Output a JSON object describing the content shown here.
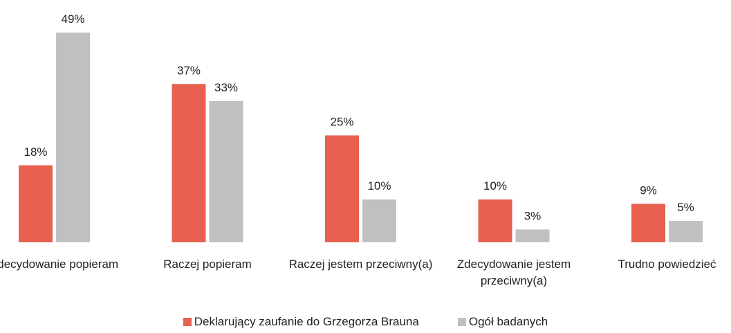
{
  "chart_data": {
    "type": "bar",
    "categories": [
      "Zdecydowanie popieram",
      "Raczej popieram",
      "Raczej jestem przeciwny(a)",
      "Zdecydowanie jestem przeciwny(a)",
      "Trudno powiedzieć"
    ],
    "series": [
      {
        "name": "Deklarujący zaufanie do Grzegorza Brauna",
        "color": "#e8604f",
        "values": [
          18,
          37,
          25,
          10,
          9
        ],
        "value_labels": [
          "18%",
          "37%",
          "25%",
          "10%",
          "9%"
        ]
      },
      {
        "name": "Ogół badanych",
        "color": "#c0c0c0",
        "values": [
          49,
          33,
          10,
          3,
          5
        ],
        "value_labels": [
          "49%",
          "33%",
          "10%",
          "3%",
          "5%"
        ]
      }
    ]
  }
}
